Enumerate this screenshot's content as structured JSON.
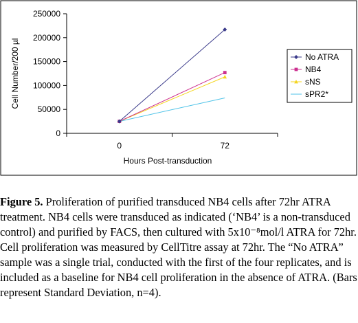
{
  "chart_data": {
    "type": "line",
    "title": "",
    "xlabel": "Hours Post-transduction",
    "ylabel": "Cell Number/200 µl",
    "categories": [
      "0",
      "72"
    ],
    "ylim": [
      0,
      250000
    ],
    "yticks": [
      "0",
      "50000",
      "100000",
      "150000",
      "200000",
      "250000"
    ],
    "grid": false,
    "legend": "right",
    "series": [
      {
        "name": "No ATRA",
        "values": [
          25000,
          217000
        ],
        "color": "#3a3a8a",
        "marker": "diamond"
      },
      {
        "name": "NB4",
        "values": [
          25000,
          127000
        ],
        "color": "#cc2f8f",
        "marker": "square"
      },
      {
        "name": "sNS",
        "values": [
          25000,
          118000
        ],
        "color": "#f5d51e",
        "marker": "triangle"
      },
      {
        "name": "sPR2*",
        "values": [
          25000,
          74000
        ],
        "color": "#4fc3e8",
        "marker": "none"
      }
    ]
  },
  "caption": {
    "label": "Figure 5.",
    "text": "Proliferation of purified transduced NB4 cells after 72hr ATRA treatment. NB4 cells were transduced as indicated (‘NB4’ is a non-transduced control) and purified by FACS, then cultured with 5x10⁻⁸mol/l ATRA for 72hr. Cell proliferation was measured by CellTitre assay at 72hr. The “No ATRA” sample was a single trial, conducted with the first of the four replicates, and is included as a baseline for NB4 cell proliferation in the absence of ATRA. (Bars represent Standard Deviation, n=4)."
  }
}
